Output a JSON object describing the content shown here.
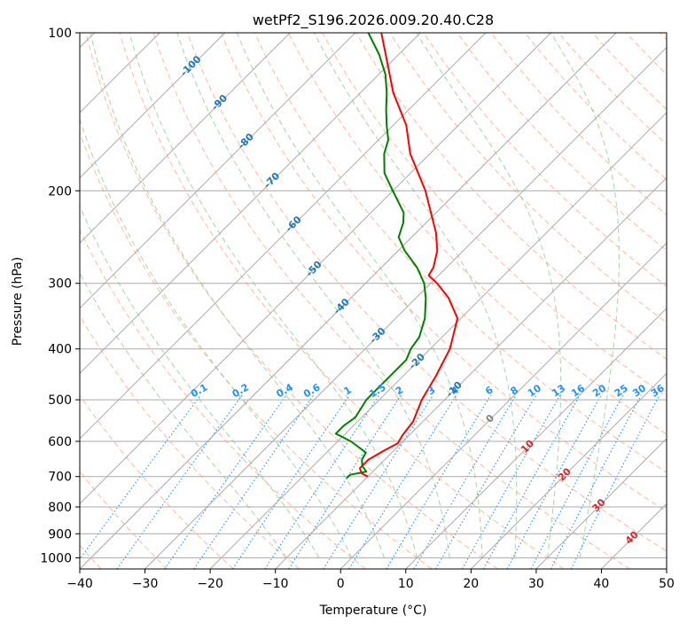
{
  "chart_data": {
    "type": "skew-t",
    "title": "wetPf2_S196.2026.009.20.40.C28",
    "xlabel": "Temperature (°C)",
    "ylabel": "Pressure (hPa)",
    "xlim": [
      -40,
      50
    ],
    "ylim": [
      1050,
      100
    ],
    "x_ticks": [
      -40,
      -30,
      -20,
      -10,
      0,
      10,
      20,
      30,
      40,
      50
    ],
    "x_tick_labels": [
      "−40",
      "−30",
      "−20",
      "−10",
      "0",
      "10",
      "20",
      "30",
      "40",
      "50"
    ],
    "y_ticks": [
      100,
      200,
      300,
      400,
      500,
      600,
      700,
      800,
      900,
      1000
    ],
    "y_tick_labels": [
      "100",
      "200",
      "300",
      "400",
      "500",
      "600",
      "700",
      "800",
      "900",
      "1000"
    ],
    "series": [
      {
        "name": "temperature",
        "color": "#ff0000",
        "points": [
          {
            "p": 700,
            "t": -10
          },
          {
            "p": 690,
            "t": -11.5
          },
          {
            "p": 675,
            "t": -12.5
          },
          {
            "p": 650,
            "t": -12.5
          },
          {
            "p": 625,
            "t": -11.5
          },
          {
            "p": 605,
            "t": -10.5
          },
          {
            "p": 585,
            "t": -11
          },
          {
            "p": 550,
            "t": -11.5
          },
          {
            "p": 500,
            "t": -13.5
          },
          {
            "p": 450,
            "t": -15
          },
          {
            "p": 400,
            "t": -17
          },
          {
            "p": 350,
            "t": -20.5
          },
          {
            "p": 320,
            "t": -25
          },
          {
            "p": 300,
            "t": -29
          },
          {
            "p": 290,
            "t": -31.5
          },
          {
            "p": 280,
            "t": -32
          },
          {
            "p": 260,
            "t": -34
          },
          {
            "p": 240,
            "t": -37
          },
          {
            "p": 200,
            "t": -45
          },
          {
            "p": 170,
            "t": -53
          },
          {
            "p": 150,
            "t": -58
          },
          {
            "p": 130,
            "t": -65
          },
          {
            "p": 110,
            "t": -72
          },
          {
            "p": 100,
            "t": -76
          }
        ]
      },
      {
        "name": "dewpoint",
        "color": "#008000",
        "points": [
          {
            "p": 705,
            "t": -13
          },
          {
            "p": 695,
            "t": -13
          },
          {
            "p": 685,
            "t": -11
          },
          {
            "p": 668,
            "t": -12.5
          },
          {
            "p": 650,
            "t": -13.5
          },
          {
            "p": 630,
            "t": -14
          },
          {
            "p": 600,
            "t": -18
          },
          {
            "p": 580,
            "t": -21.5
          },
          {
            "p": 560,
            "t": -21.5
          },
          {
            "p": 540,
            "t": -21
          },
          {
            "p": 500,
            "t": -22
          },
          {
            "p": 460,
            "t": -22
          },
          {
            "p": 420,
            "t": -22
          },
          {
            "p": 400,
            "t": -23
          },
          {
            "p": 380,
            "t": -23.5
          },
          {
            "p": 350,
            "t": -25.5
          },
          {
            "p": 320,
            "t": -28.5
          },
          {
            "p": 300,
            "t": -31
          },
          {
            "p": 280,
            "t": -34.5
          },
          {
            "p": 260,
            "t": -39
          },
          {
            "p": 245,
            "t": -42
          },
          {
            "p": 230,
            "t": -43.5
          },
          {
            "p": 220,
            "t": -45
          },
          {
            "p": 200,
            "t": -50
          },
          {
            "p": 185,
            "t": -54
          },
          {
            "p": 170,
            "t": -57
          },
          {
            "p": 160,
            "t": -58.5
          },
          {
            "p": 150,
            "t": -61
          },
          {
            "p": 140,
            "t": -63.5
          },
          {
            "p": 130,
            "t": -66
          },
          {
            "p": 120,
            "t": -69
          },
          {
            "p": 110,
            "t": -73
          },
          {
            "p": 100,
            "t": -78
          }
        ]
      }
    ],
    "isotherms": [
      -100,
      -90,
      -80,
      -70,
      -60,
      -50,
      -40,
      -30,
      -20,
      -10,
      0,
      10,
      20,
      30,
      40,
      50
    ],
    "isotherm_labels": [
      {
        "text": "-100",
        "t": -100,
        "p": 115
      },
      {
        "text": "-90",
        "t": -90,
        "p": 135
      },
      {
        "text": "-80",
        "t": -80,
        "p": 160
      },
      {
        "text": "-70",
        "t": -70,
        "p": 190
      },
      {
        "text": "-60",
        "t": -60,
        "p": 230
      },
      {
        "text": "-50",
        "t": -50,
        "p": 280
      },
      {
        "text": "-40",
        "t": -40,
        "p": 330
      },
      {
        "text": "-30",
        "t": -30,
        "p": 375
      },
      {
        "text": "-20",
        "t": -20,
        "p": 420
      },
      {
        "text": "-10",
        "t": -10,
        "p": 475
      },
      {
        "text": "0",
        "t": 0,
        "p": 540
      },
      {
        "text": "10",
        "t": 10,
        "p": 610
      },
      {
        "text": "20",
        "t": 20,
        "p": 690
      },
      {
        "text": "30",
        "t": 30,
        "p": 790
      },
      {
        "text": "40",
        "t": 40,
        "p": 910
      }
    ],
    "isotherm_label_colors": {
      "negative": "#1f77b4",
      "zero": "#7f7f7f",
      "positive": "#d62728"
    },
    "mixing_ratios": [
      0.1,
      0.2,
      0.4,
      0.6,
      1,
      1.5,
      2,
      3,
      4,
      6,
      8,
      10,
      13,
      16,
      20,
      25,
      30,
      36
    ],
    "mixing_ratio_labels": [
      "0.1",
      "0.2",
      "0.4",
      "0.6",
      "1",
      "1.5",
      "2",
      "3",
      "4",
      "6",
      "8",
      "10",
      "13",
      "16",
      "20",
      "25",
      "30",
      "36"
    ],
    "mixing_ratio_label_pressure": 490,
    "dry_adiabats_theta_c": [
      -40,
      -30,
      -20,
      -10,
      0,
      10,
      20,
      30,
      40,
      50,
      60,
      70,
      80,
      90,
      100,
      110,
      120,
      130,
      140,
      150,
      160,
      170,
      180,
      190,
      200
    ],
    "moist_adiabats_c": [
      -10,
      -5,
      0,
      5,
      10,
      15,
      20,
      25,
      30,
      35
    ],
    "colors": {
      "grid": "#aaaaaa",
      "dry_adiabat": "#ff9f80",
      "moist_adiabat": "#8fc98f",
      "mixing_ratio": "#1e90ff",
      "mixing_label": "#1e90ff",
      "axis": "#000000",
      "tan_line": "#d8b48c"
    }
  }
}
